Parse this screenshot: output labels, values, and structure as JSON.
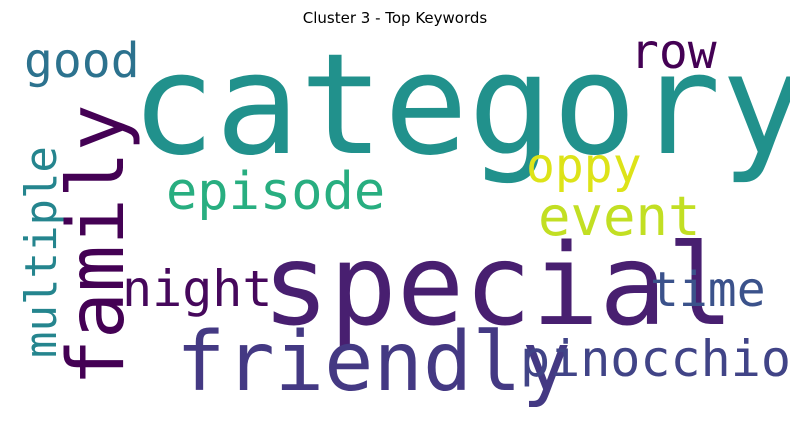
{
  "title": "Cluster 3 - Top Keywords",
  "words": {
    "category": {
      "text": "category",
      "color": "#21918c"
    },
    "special": {
      "text": "special",
      "color": "#481f70"
    },
    "friendly": {
      "text": "friendly",
      "color": "#443983"
    },
    "family": {
      "text": "family",
      "color": "#440154"
    },
    "episode": {
      "text": "episode",
      "color": "#28ae80"
    },
    "event": {
      "text": "event",
      "color": "#c2df23"
    },
    "oppy": {
      "text": "oppy",
      "color": "#dde318"
    },
    "good": {
      "text": "good",
      "color": "#2c728e"
    },
    "row": {
      "text": "row",
      "color": "#440154"
    },
    "multiple": {
      "text": "multiple",
      "color": "#25858e"
    },
    "night": {
      "text": "night",
      "color": "#46085c"
    },
    "time": {
      "text": "time",
      "color": "#3b528b"
    },
    "pinocchio": {
      "text": "pinocchio",
      "color": "#414487"
    }
  }
}
